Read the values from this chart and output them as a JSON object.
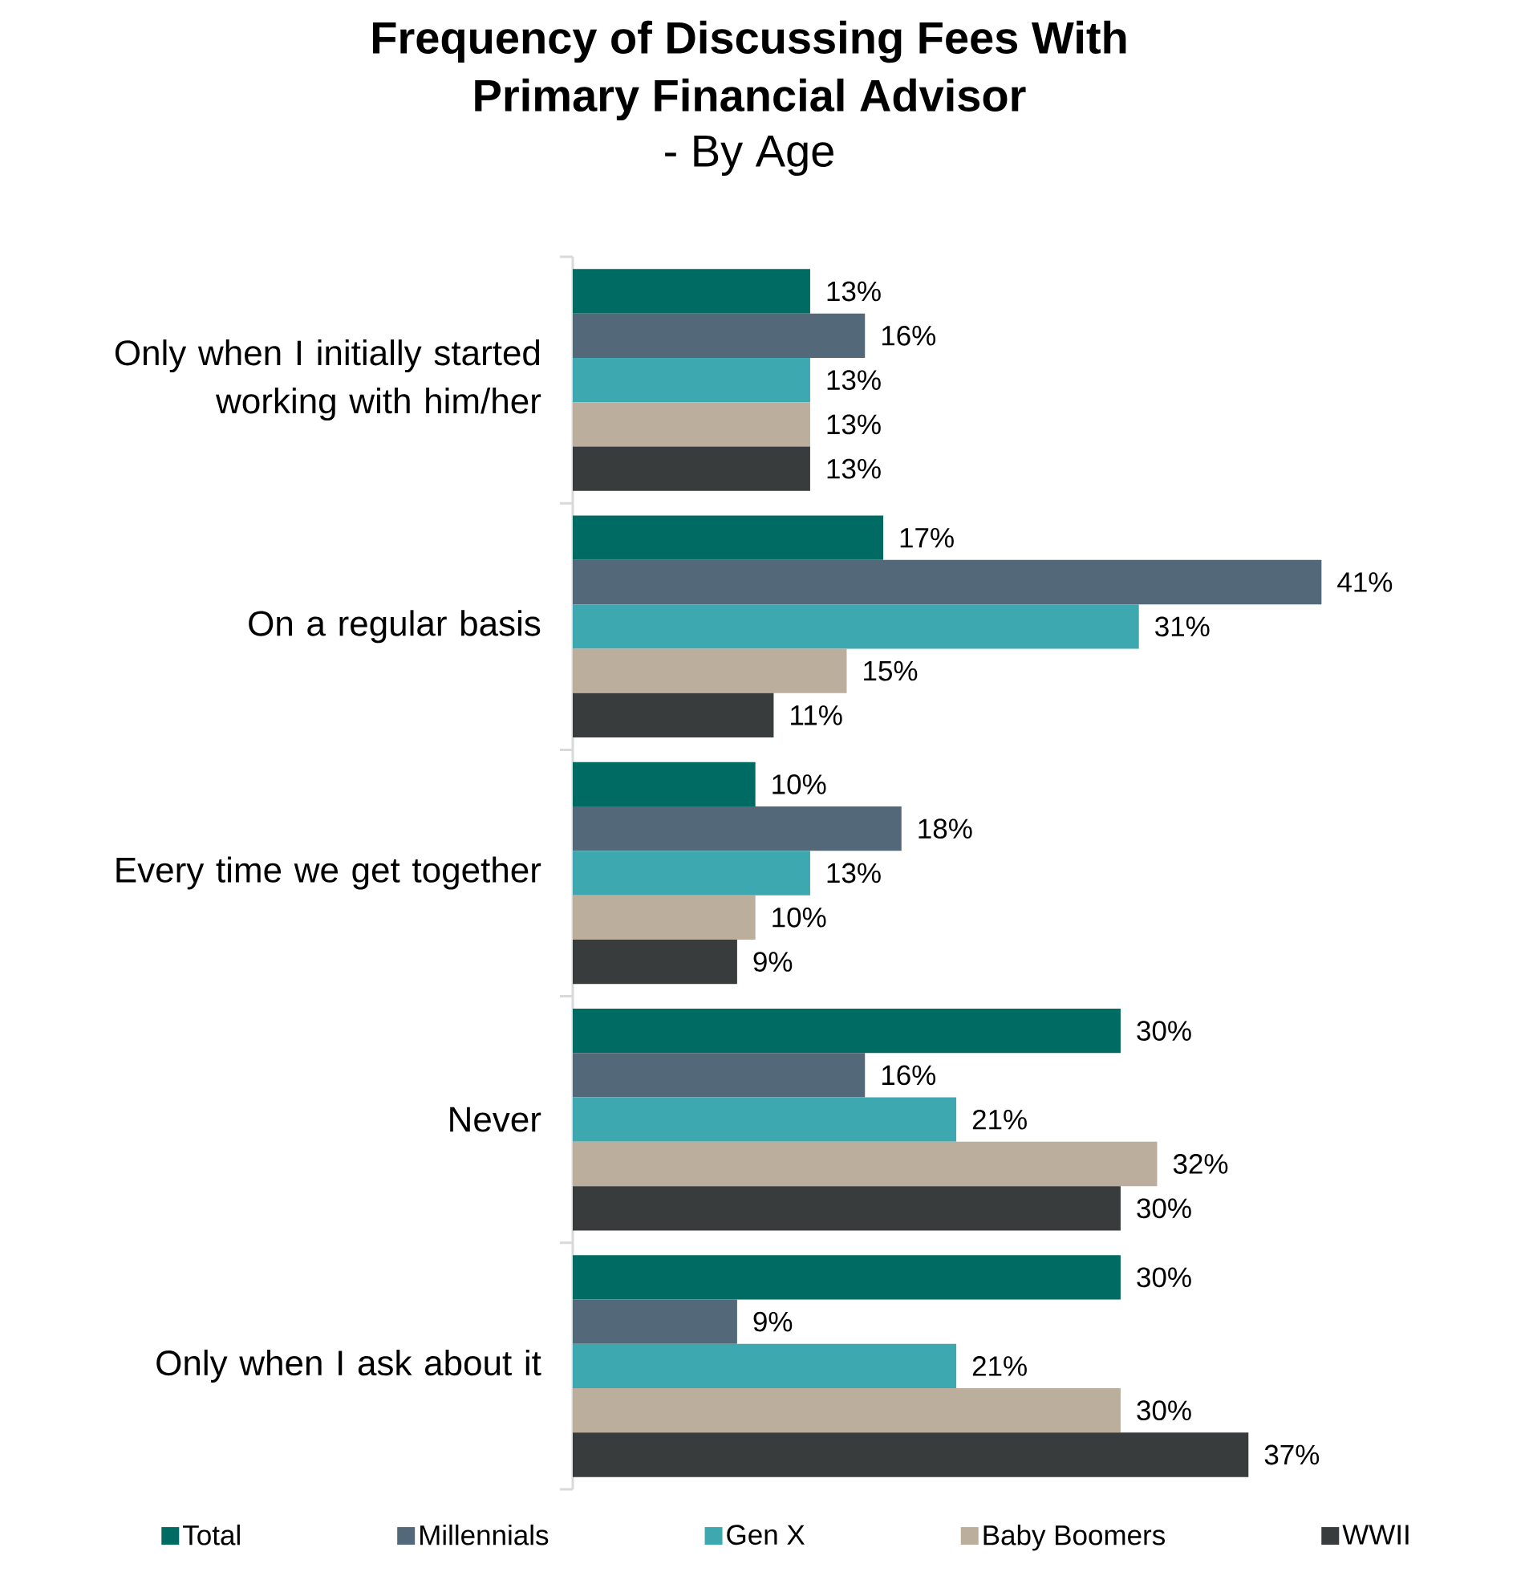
{
  "chart_data": {
    "type": "bar",
    "orientation": "horizontal",
    "title": "Frequency of Discussing Fees With Primary Financial Advisor",
    "subtitle": "- By Age",
    "categories": [
      "Only when I initially started working with him/her",
      "On a regular basis",
      "Every time we get together",
      "Never",
      "Only when I ask about it"
    ],
    "series": [
      {
        "name": "Total",
        "color": "#006b63",
        "values": [
          13,
          17,
          10,
          30,
          30
        ],
        "value_labels": [
          "13%",
          "17%",
          "10%",
          "30%",
          "30%"
        ]
      },
      {
        "name": "Millennials",
        "color": "#536878",
        "values": [
          16,
          41,
          18,
          16,
          9
        ],
        "value_labels": [
          "16%",
          "41%",
          "18%",
          "16%",
          "9%"
        ]
      },
      {
        "name": "Gen X",
        "color": "#3ea8b1",
        "values": [
          13,
          31,
          13,
          21,
          21
        ],
        "value_labels": [
          "13%",
          "31%",
          "13%",
          "21%",
          "21%"
        ]
      },
      {
        "name": "Baby Boomers",
        "color": "#bbae9d",
        "values": [
          13,
          15,
          10,
          32,
          30
        ],
        "value_labels": [
          "13%",
          "15%",
          "10%",
          "32%",
          "30%"
        ]
      },
      {
        "name": "WWII",
        "color": "#383c3d",
        "values": [
          13,
          11,
          9,
          30,
          37
        ],
        "value_labels": [
          "13%",
          "11%",
          "9%",
          "30%",
          "37%"
        ]
      }
    ],
    "legend": "bottom"
  }
}
